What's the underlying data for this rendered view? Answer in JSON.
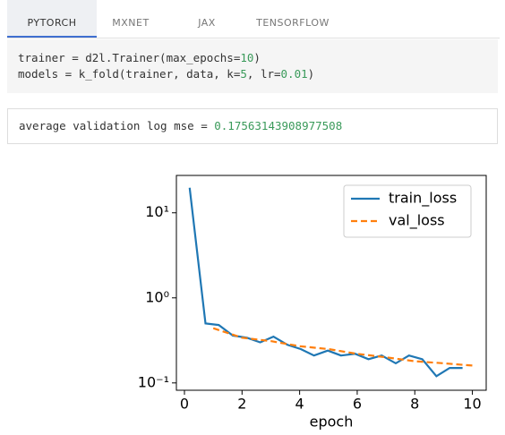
{
  "tabs": [
    "PYTORCH",
    "MXNET",
    "JAX",
    "TENSORFLOW"
  ],
  "code": {
    "lines": [
      [
        "trainer = d2l.Trainer(max_epochs=",
        "10",
        ")"
      ],
      [
        "models = k_fold(trainer, data, k=",
        "5",
        ", lr=",
        "0.01",
        ")"
      ]
    ]
  },
  "output": {
    "lines": [
      [
        "average validation log mse = ",
        "0.17563143908977508"
      ]
    ]
  },
  "chart_data": {
    "type": "line",
    "xlabel": "epoch",
    "xlim": [
      -0.28,
      10.48
    ],
    "xticks": [
      0,
      2,
      4,
      6,
      8,
      10
    ],
    "ylim": [
      0.082,
      27.5
    ],
    "log_y": true,
    "yticks": [
      {
        "value": 0.1,
        "label": "10⁻¹"
      },
      {
        "value": 1,
        "label": "10⁰"
      },
      {
        "value": 10,
        "label": "10¹"
      }
    ],
    "legend": "upper right",
    "series": [
      {
        "name": "train_loss",
        "color": "#1f77b4",
        "dash": false,
        "x": [
          0.18,
          0.73,
          1.19,
          1.68,
          2.17,
          2.63,
          3.09,
          3.58,
          4.04,
          4.5,
          4.98,
          5.44,
          5.93,
          6.39,
          6.85,
          7.34,
          7.8,
          8.26,
          8.75,
          9.21,
          9.66
        ],
        "values": [
          19.7,
          0.5,
          0.48,
          0.36,
          0.34,
          0.3,
          0.35,
          0.28,
          0.25,
          0.21,
          0.24,
          0.21,
          0.22,
          0.19,
          0.21,
          0.17,
          0.21,
          0.19,
          0.12,
          0.15,
          0.15
        ]
      },
      {
        "name": "val_loss",
        "color": "#ff7f0e",
        "dash": true,
        "x": [
          1,
          2,
          3,
          4,
          5,
          6,
          7,
          8,
          9,
          10
        ],
        "values": [
          0.44,
          0.34,
          0.31,
          0.27,
          0.25,
          0.22,
          0.2,
          0.18,
          0.17,
          0.16
        ]
      }
    ]
  }
}
